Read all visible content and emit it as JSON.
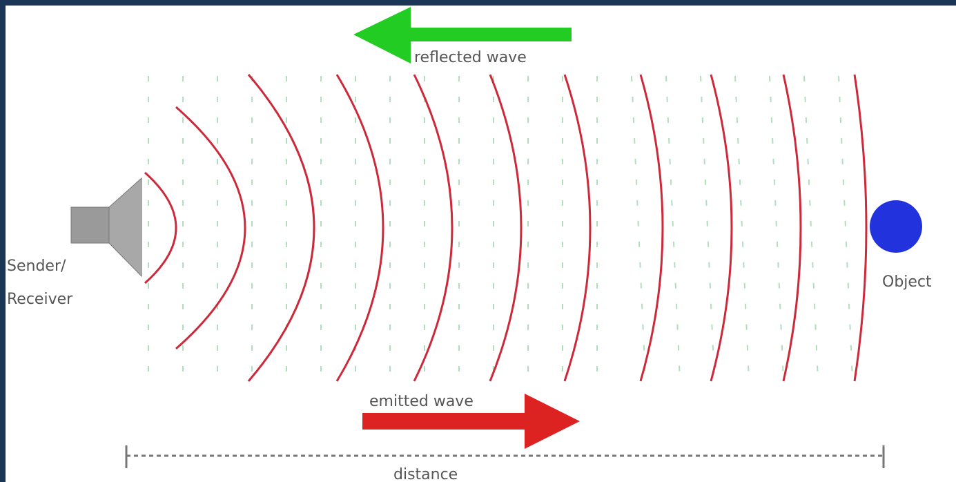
{
  "diagram": {
    "reflected_label": "reflected wave",
    "emitted_label": "emitted wave",
    "sender_label": [
      "Sender/",
      "Receiver"
    ],
    "object_label": "Object",
    "distance_label": "distance"
  }
}
